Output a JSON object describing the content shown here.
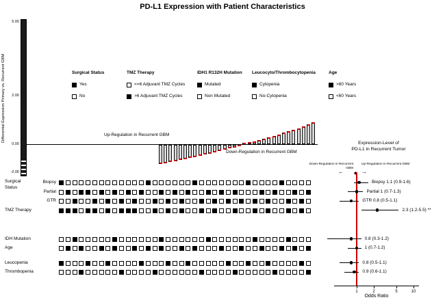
{
  "title": "PD-L1 Expression with Patient Characteristics",
  "colors": {
    "red": "#cc0000",
    "bar_fill": "#d8d8d8",
    "black": "#000000"
  },
  "chart_data": [
    {
      "type": "bar",
      "name": "differential-expression-waterfall",
      "ylabel": "Differential Expression Primary vs. Recurrent GBM",
      "ylim": [
        -2,
        5
      ],
      "yticks": [
        "5.00",
        "2.00",
        "0.00",
        "-2.00"
      ],
      "up_label": "Up-Regulation in Recurrent GBM",
      "down_label": "Down-Regulation in Recurrent GBM",
      "values": [
        -0.78,
        -0.74,
        -0.7,
        -0.66,
        -0.62,
        -0.58,
        -0.54,
        -0.5,
        -0.45,
        -0.4,
        -0.35,
        -0.3,
        -0.25,
        -0.2,
        -0.15,
        -0.1,
        -0.05,
        0.04,
        0.08,
        0.12,
        0.17,
        0.22,
        0.28,
        0.34,
        0.4,
        0.46,
        0.52,
        0.58,
        0.65,
        0.72,
        0.8,
        0.88
      ]
    },
    {
      "type": "heatmap",
      "name": "patient-characteristics-matrix",
      "columns": 38,
      "group_label_line1": "Surgical",
      "group_label_line2": "Status",
      "rows": [
        {
          "id": "biopsy",
          "label": "Biopsy",
          "cells": "10000000000001000000100000001000010000"
        },
        {
          "id": "partial",
          "label": "Partial",
          "cells": "01011010101010010101001010100010100101"
        },
        {
          "id": "gtr",
          "label": "GTR",
          "cells": "00100101010100101010010101010101001010"
        },
        {
          "id": "tmz",
          "label": "TMZ Therapy",
          "cells": "11101101011100101010010100100101001010"
        },
        {
          "id": "idh",
          "label": "IDH Mutation",
          "cells": "00100000100000010000001000000100001000"
        },
        {
          "id": "age",
          "label": "Age",
          "cells": "01010010100101010010100010010010010101"
        },
        {
          "id": "leucopenia",
          "label": "Leucopenia",
          "cells": "10001001000010001001000001001001000010"
        },
        {
          "id": "thrombopenia",
          "label": "Thrombopenia",
          "cells": "00010000010000100000010000100000100001"
        }
      ]
    },
    {
      "type": "scatter",
      "name": "forest-plot",
      "title_line1": "Expression-Level of",
      "title_line2": "PD-L1 in Recurrent Tumor",
      "xlabel": "Odds Ratio",
      "xscale": "log",
      "xticks": [
        1,
        2,
        5,
        10
      ],
      "left_arrow_label": "Down-Regulation in Recurrent GBM",
      "right_arrow_label": "Up-Regulation in Recurrent GBM",
      "rows": [
        {
          "id": "biopsy",
          "label": "Biopsy 1.1 (0.9-1.6)",
          "est": 1.1,
          "lo": 0.9,
          "hi": 1.6
        },
        {
          "id": "partial",
          "label": "Partial 1 (0.7-1.3)",
          "est": 1.0,
          "lo": 0.7,
          "hi": 1.3
        },
        {
          "id": "gtr",
          "label": "GTR 0.8 (0.5-1.1)",
          "est": 0.8,
          "lo": 0.5,
          "hi": 1.1
        },
        {
          "id": "tmz",
          "label": "2.3 (1.2-5.5) **",
          "est": 2.3,
          "lo": 1.2,
          "hi": 5.5
        },
        {
          "id": "idh",
          "label": "0.8 (0.3-1.2)",
          "est": 0.8,
          "lo": 0.3,
          "hi": 1.2
        },
        {
          "id": "age",
          "label": "1 (0.7-1.2)",
          "est": 1.0,
          "lo": 0.7,
          "hi": 1.2
        },
        {
          "id": "leucopenia",
          "label": "0.8 (0.5-1.1)",
          "est": 0.8,
          "lo": 0.5,
          "hi": 1.1
        },
        {
          "id": "thrombopenia",
          "label": "0.9 (0.6-1.1)",
          "est": 0.9,
          "lo": 0.6,
          "hi": 1.1
        }
      ]
    }
  ],
  "legend": {
    "groups": [
      {
        "title": "Surgical Status",
        "items": [
          {
            "filled": true,
            "label": "Yes"
          },
          {
            "filled": false,
            "label": "No"
          }
        ]
      },
      {
        "title": "TMZ Therapy",
        "items": [
          {
            "filled": false,
            "label": "<=6 Adjuvant TMZ Cycles"
          },
          {
            "filled": true,
            "label": ">6 Adjuvant TMZ Cycles"
          }
        ]
      },
      {
        "title": "IDH1 R132H Mutation",
        "items": [
          {
            "filled": true,
            "label": "Mutated"
          },
          {
            "filled": false,
            "label": "Non Mutated"
          }
        ]
      },
      {
        "title": "Leucocyto/Thrombocytopenia",
        "items": [
          {
            "filled": true,
            "label": "Cytopenia"
          },
          {
            "filled": false,
            "label": "No-Cytopenia"
          }
        ]
      },
      {
        "title": "Age",
        "items": [
          {
            "filled": true,
            "label": ">60 Years"
          },
          {
            "filled": false,
            "label": "<60 Years"
          }
        ]
      }
    ]
  }
}
